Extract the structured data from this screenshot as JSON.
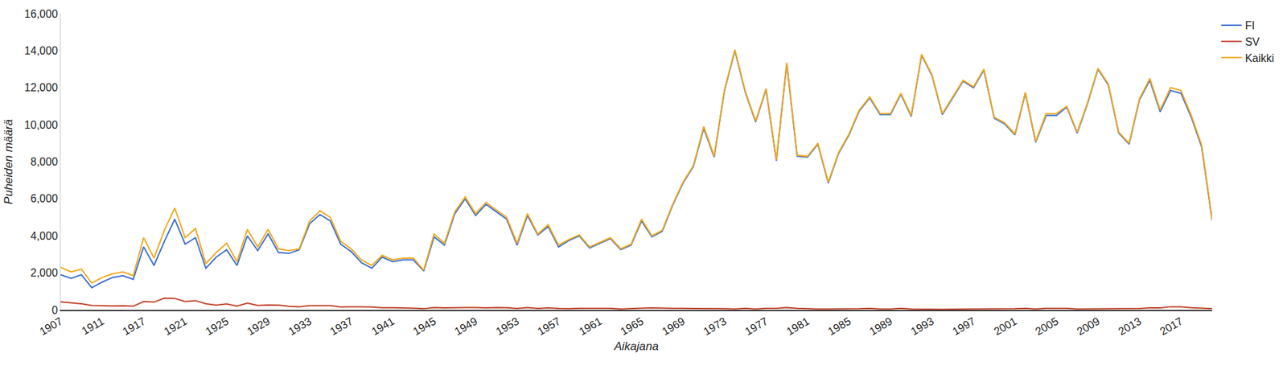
{
  "chart_data": {
    "type": "line",
    "x_label": "Aikajana",
    "y_label": "Puheiden määrä",
    "categories": [
      "1907",
      null,
      null,
      null,
      "1911",
      null,
      null,
      null,
      "1917",
      null,
      null,
      null,
      "1921",
      null,
      null,
      null,
      "1925",
      null,
      null,
      null,
      "1929",
      null,
      null,
      null,
      "1933",
      null,
      null,
      null,
      "1937",
      null,
      null,
      null,
      "1941",
      null,
      null,
      null,
      "1945",
      null,
      null,
      null,
      "1949",
      null,
      null,
      null,
      "1953",
      null,
      null,
      null,
      "1957",
      null,
      null,
      null,
      "1961",
      null,
      null,
      null,
      "1965",
      null,
      null,
      null,
      "1969",
      null,
      null,
      null,
      "1973",
      null,
      null,
      null,
      "1977",
      null,
      null,
      null,
      "1981",
      null,
      null,
      null,
      "1985",
      null,
      null,
      null,
      "1989",
      null,
      null,
      null,
      "1993",
      null,
      null,
      null,
      "1997",
      null,
      null,
      null,
      "2001",
      null,
      null,
      null,
      "2005",
      null,
      null,
      null,
      "2009",
      null,
      null,
      null,
      "2013",
      null,
      null,
      null,
      "2017",
      null,
      null,
      null
    ],
    "series": [
      {
        "name": "FI",
        "color": "#3c6fcf",
        "values": [
          1900,
          1700,
          1900,
          1200,
          1500,
          1750,
          1850,
          1650,
          3400,
          2400,
          3700,
          4900,
          3550,
          3900,
          2250,
          2850,
          3250,
          2400,
          4000,
          3200,
          4100,
          3100,
          3050,
          3250,
          4650,
          5150,
          4800,
          3550,
          3150,
          2550,
          2250,
          2850,
          2600,
          2700,
          2700,
          2100,
          3950,
          3500,
          5200,
          6000,
          5100,
          5700,
          5300,
          4900,
          3500,
          5100,
          4050,
          4500,
          3400,
          3750,
          4000,
          3350,
          3600,
          3850,
          3250,
          3500,
          4800,
          3950,
          4250,
          5650,
          6850,
          7750,
          9800,
          8250,
          11850,
          14000,
          11750,
          10150,
          11900,
          8050,
          13300,
          8300,
          8250,
          8950,
          6850,
          8450,
          9450,
          10750,
          11450,
          10550,
          10550,
          11650,
          10450,
          13750,
          12650,
          10550,
          11450,
          12350,
          12000,
          12950,
          10350,
          10050,
          9450,
          11700,
          9050,
          10500,
          10500,
          10950,
          9550,
          11150,
          13000,
          12150,
          9550,
          8950,
          11350,
          12400,
          10700,
          11850,
          11700,
          10400,
          8800,
          4850
        ]
      },
      {
        "name": "SV",
        "color": "#c2452d",
        "values": [
          430,
          370,
          330,
          240,
          220,
          210,
          220,
          200,
          450,
          420,
          630,
          620,
          450,
          500,
          330,
          260,
          320,
          200,
          370,
          240,
          270,
          260,
          190,
          170,
          230,
          230,
          230,
          160,
          170,
          170,
          160,
          120,
          120,
          110,
          90,
          60,
          130,
          110,
          130,
          130,
          130,
          110,
          130,
          120,
          70,
          130,
          70,
          110,
          70,
          60,
          80,
          80,
          60,
          80,
          50,
          60,
          90,
          110,
          90,
          80,
          80,
          80,
          80,
          60,
          60,
          50,
          80,
          50,
          80,
          80,
          130,
          80,
          60,
          50,
          50,
          50,
          60,
          60,
          80,
          50,
          50,
          80,
          50,
          40,
          40,
          30,
          40,
          40,
          40,
          40,
          50,
          50,
          60,
          80,
          50,
          80,
          90,
          80,
          50,
          50,
          60,
          60,
          50,
          50,
          70,
          110,
          110,
          170,
          170,
          120,
          90,
          60
        ]
      },
      {
        "name": "Kaikki",
        "color": "#f0a81e",
        "values": [
          2300,
          2050,
          2200,
          1450,
          1750,
          1950,
          2050,
          1850,
          3900,
          2800,
          4300,
          5500,
          3900,
          4400,
          2500,
          3100,
          3600,
          2600,
          4350,
          3400,
          4350,
          3300,
          3200,
          3300,
          4800,
          5350,
          5000,
          3700,
          3300,
          2700,
          2400,
          2950,
          2700,
          2800,
          2800,
          2150,
          4100,
          3600,
          5300,
          6100,
          5200,
          5800,
          5400,
          5000,
          3600,
          5200,
          4100,
          4600,
          3500,
          3800,
          4050,
          3400,
          3650,
          3900,
          3300,
          3550,
          4900,
          4000,
          4300,
          5700,
          6900,
          7800,
          9900,
          8300,
          11900,
          14050,
          11800,
          10200,
          11950,
          8100,
          13350,
          8350,
          8300,
          9000,
          6900,
          8500,
          9500,
          10800,
          11500,
          10600,
          10600,
          11700,
          10500,
          13800,
          12700,
          10600,
          11500,
          12400,
          12050,
          13000,
          10400,
          10100,
          9500,
          11750,
          9100,
          10600,
          10600,
          11000,
          9600,
          11200,
          13050,
          12200,
          9600,
          9000,
          11400,
          12500,
          10800,
          12000,
          11850,
          10500,
          8900,
          4900
        ]
      }
    ],
    "ylim": [
      0,
      16000
    ],
    "yticks": [
      0,
      {
        "value": 2000,
        "label": "2,000"
      },
      {
        "value": 4000,
        "label": "4,000"
      },
      {
        "value": 6000,
        "label": "6,000"
      },
      {
        "value": 8000,
        "label": "8,000"
      },
      {
        "value": 10000,
        "label": "10,000"
      },
      {
        "value": 12000,
        "label": "12,000"
      },
      {
        "value": 14000,
        "label": "14,000"
      },
      {
        "value": 16000,
        "label": "16,000"
      }
    ],
    "grid": false,
    "legend": "top-right"
  }
}
